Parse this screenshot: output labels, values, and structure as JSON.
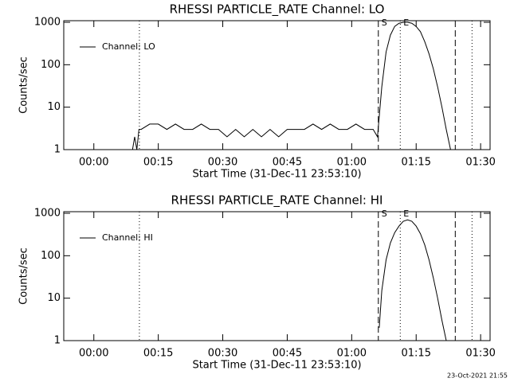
{
  "chart_data": [
    {
      "type": "line",
      "title": "RHESSI PARTICLE_RATE Channel: LO",
      "x_label": "Start Time (31-Dec-11 23:53:10)",
      "y_label": "Counts/sec",
      "log_y": true,
      "legend": "upper left",
      "xlim": [
        -7,
        92.2
      ],
      "ylim": [
        1,
        1090
      ],
      "xticks": [
        {
          "value": 0,
          "label": "00:00"
        },
        {
          "value": 15,
          "label": "00:15"
        },
        {
          "value": 30,
          "label": "00:30"
        },
        {
          "value": 45,
          "label": "00:45"
        },
        {
          "value": 60,
          "label": "01:00"
        },
        {
          "value": 75,
          "label": "01:15"
        },
        {
          "value": 90,
          "label": "01:30"
        }
      ],
      "yticks": [
        1,
        10,
        100,
        1000
      ],
      "x": [
        9,
        9.5,
        10,
        10.5,
        11,
        13,
        15,
        17,
        19,
        21,
        23,
        25,
        27,
        29,
        31,
        33,
        35,
        37,
        39,
        41,
        43,
        45,
        47,
        49,
        51,
        53,
        55,
        57,
        59,
        61,
        63,
        65,
        66,
        67,
        68,
        69,
        70,
        71,
        72,
        73,
        74,
        75,
        76,
        77,
        78,
        79,
        80,
        81,
        82,
        83
      ],
      "series": [
        {
          "name": "Channel: LO",
          "color": "#000000",
          "values": [
            1,
            2,
            1,
            3,
            3,
            4,
            4,
            3,
            4,
            3,
            3,
            4,
            3,
            3,
            2,
            3,
            2,
            3,
            2,
            3,
            2,
            3,
            3,
            3,
            4,
            3,
            4,
            3,
            3,
            4,
            3,
            3,
            2,
            30,
            200,
            500,
            800,
            950,
            1000,
            1000,
            950,
            800,
            600,
            350,
            180,
            80,
            30,
            10,
            3,
            1
          ]
        }
      ],
      "vlines": [
        {
          "x": 10.6,
          "style": "dotted"
        },
        {
          "x": 66.2,
          "style": "dashed",
          "label": "S"
        },
        {
          "x": 71.3,
          "style": "dotted",
          "label": "E"
        },
        {
          "x": 84.1,
          "style": "dashed"
        },
        {
          "x": 88.0,
          "style": "dotted"
        }
      ]
    },
    {
      "type": "line",
      "title": "RHESSI PARTICLE_RATE Channel: HI",
      "x_label": "Start Time (31-Dec-11 23:53:10)",
      "y_label": "Counts/sec",
      "log_y": true,
      "legend": "upper left",
      "xlim": [
        -7,
        92.2
      ],
      "ylim": [
        1,
        1090
      ],
      "xticks": [
        {
          "value": 0,
          "label": "00:00"
        },
        {
          "value": 15,
          "label": "00:15"
        },
        {
          "value": 30,
          "label": "00:30"
        },
        {
          "value": 45,
          "label": "00:45"
        },
        {
          "value": 60,
          "label": "01:00"
        },
        {
          "value": 75,
          "label": "01:15"
        },
        {
          "value": 90,
          "label": "01:30"
        }
      ],
      "yticks": [
        1,
        10,
        100,
        1000
      ],
      "x": [
        66.4,
        67,
        68,
        69,
        70,
        71,
        72,
        73,
        74,
        75,
        76,
        77,
        78,
        79,
        80,
        81,
        82
      ],
      "series": [
        {
          "name": "Channel: HI",
          "color": "#000000",
          "values": [
            2,
            15,
            80,
            200,
            350,
            500,
            650,
            700,
            650,
            500,
            330,
            180,
            80,
            30,
            10,
            3,
            1
          ]
        }
      ],
      "vlines": [
        {
          "x": 10.6,
          "style": "dotted"
        },
        {
          "x": 66.2,
          "style": "dashed",
          "label": "S"
        },
        {
          "x": 71.3,
          "style": "dotted",
          "label": "E"
        },
        {
          "x": 84.1,
          "style": "dashed"
        },
        {
          "x": 88.0,
          "style": "dotted"
        }
      ]
    }
  ],
  "footer": "23-Oct-2021 21:55"
}
